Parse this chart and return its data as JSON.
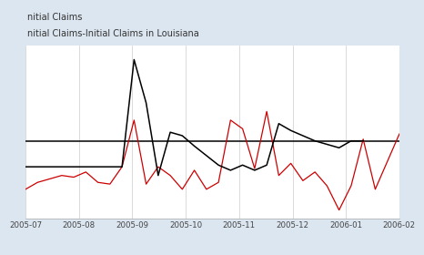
{
  "title_line1": "nitial Claims",
  "title_line2": "nitial Claims-Initial Claims in Louisiana",
  "background_color": "#dce6f0",
  "plot_bg_color": "#ffffff",
  "x_labels": [
    "2005-07",
    "2005-08",
    "2005-09",
    "2005-10",
    "2005-11",
    "2005-12",
    "2006-01",
    "2006-02"
  ],
  "black_x": [
    0,
    4,
    8,
    9,
    10,
    11,
    12,
    13,
    14,
    16,
    17,
    18,
    19,
    20,
    21,
    22,
    24,
    26,
    27,
    28
  ],
  "black_y": [
    0.35,
    0.35,
    0.35,
    0.97,
    0.72,
    0.3,
    0.55,
    0.53,
    0.47,
    0.36,
    0.33,
    0.36,
    0.33,
    0.36,
    0.6,
    0.56,
    0.5,
    0.46,
    0.5,
    0.5
  ],
  "red_x": [
    0,
    1,
    3,
    4,
    5,
    6,
    7,
    8,
    9,
    10,
    11,
    12,
    13,
    14,
    15,
    16,
    17,
    18,
    19,
    20,
    21,
    22,
    23,
    24,
    25,
    26,
    27,
    28,
    29,
    30,
    31
  ],
  "red_y": [
    0.22,
    0.26,
    0.3,
    0.29,
    0.32,
    0.26,
    0.25,
    0.35,
    0.62,
    0.25,
    0.35,
    0.3,
    0.22,
    0.33,
    0.22,
    0.26,
    0.62,
    0.57,
    0.34,
    0.67,
    0.3,
    0.37,
    0.27,
    0.32,
    0.24,
    0.1,
    0.24,
    0.51,
    0.22,
    0.38,
    0.54
  ],
  "hline_value": 0.5,
  "xlim": [
    0,
    31
  ],
  "ylim": [
    0.05,
    1.05
  ]
}
